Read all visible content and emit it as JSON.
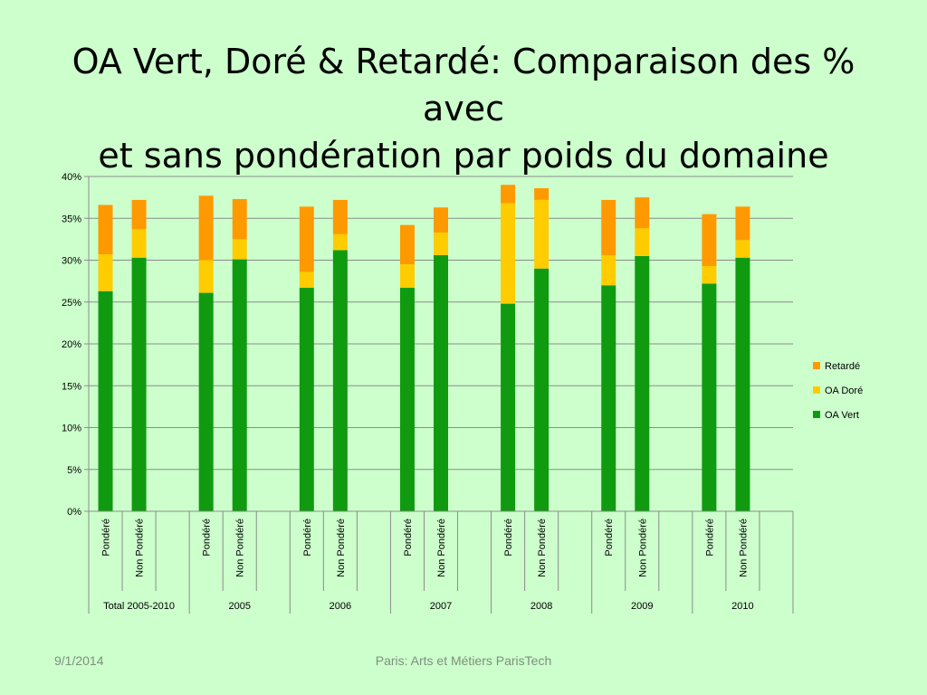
{
  "slide": {
    "title_line1": "OA Vert, Doré & Retardé: Comparaison des % avec",
    "title_line2": "et sans pondération par poids du domaine",
    "footer_date": "9/1/2014",
    "footer_center": "Paris: Arts et Métiers ParisTech"
  },
  "chart_data": {
    "type": "bar",
    "stacked": true,
    "groups": [
      "Total 2005-2010",
      "2005",
      "2006",
      "2007",
      "2008",
      "2009",
      "2010"
    ],
    "subcategories": [
      "Pondéré",
      "Non Pondéré"
    ],
    "series": [
      {
        "name": "OA Vert",
        "color": "#109a10",
        "values": [
          26.3,
          30.3,
          26.1,
          30.1,
          26.7,
          31.2,
          26.7,
          30.6,
          24.8,
          29.0,
          27.0,
          30.5,
          27.2,
          30.3
        ]
      },
      {
        "name": "OA Doré",
        "color": "#ffcc00",
        "values": [
          4.4,
          3.4,
          3.9,
          2.4,
          1.9,
          1.9,
          2.8,
          2.7,
          12.0,
          8.2,
          3.6,
          3.3,
          2.1,
          2.1
        ]
      },
      {
        "name": "Retardé",
        "color": "#ff9900",
        "values": [
          5.9,
          3.5,
          7.7,
          4.8,
          7.8,
          4.1,
          4.7,
          3.0,
          2.2,
          1.4,
          6.6,
          3.7,
          6.2,
          4.0
        ]
      }
    ],
    "ylim": [
      0,
      40
    ],
    "yticks": [
      "0%",
      "5%",
      "10%",
      "15%",
      "20%",
      "25%",
      "30%",
      "35%",
      "40%"
    ],
    "grid": true,
    "legend_position": "right"
  }
}
